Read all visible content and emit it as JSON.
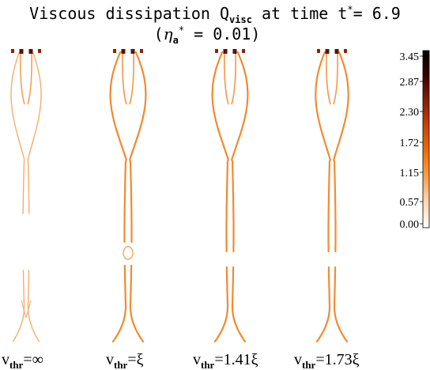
{
  "chart_data": {
    "type": "heatmap",
    "title": {
      "line1_prefix": "Viscous dissipation Q",
      "line1_sub": "visc",
      "line1_mid": " at time t",
      "line1_sup": "*",
      "line1_suffix": "= 6.9",
      "line2_open": "(",
      "line2_symbol": "η",
      "line2_sub": "a",
      "line2_sup": "*",
      "line2_suffix": " = 0.01)"
    },
    "colorbar": {
      "ticks": [
        "3.45",
        "2.87",
        "2.30",
        "1.72",
        "1.15",
        "0.57",
        "0.00"
      ],
      "range": [
        0.0,
        3.45
      ],
      "colors": [
        "#ffffff",
        "#ffd9b0",
        "#ffa04a",
        "#f06f00",
        "#c84500",
        "#8a1e00",
        "#3a0000",
        "#000000"
      ]
    },
    "panels": [
      {
        "label_main": "v",
        "label_sub": "thr",
        "label_value": "=∞"
      },
      {
        "label_main": "v",
        "label_sub": "thr",
        "label_value": "=ξ"
      },
      {
        "label_main": "v",
        "label_sub": "thr",
        "label_value": "=1.41ξ"
      },
      {
        "label_main": "v",
        "label_sub": "thr",
        "label_value": "=1.73ξ"
      }
    ]
  }
}
